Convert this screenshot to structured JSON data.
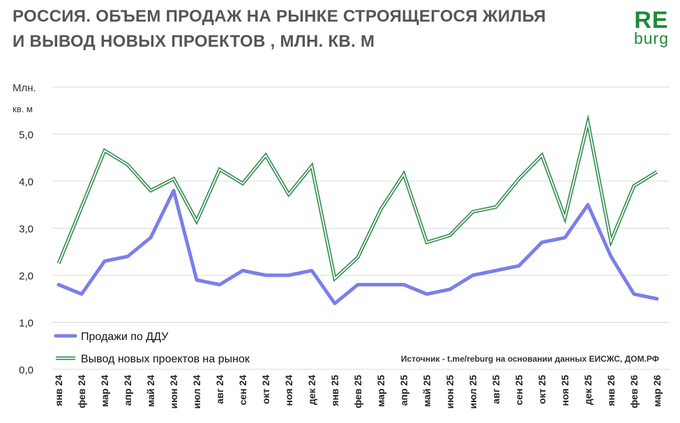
{
  "header": {
    "title_line1": "РОССИЯ. ОБЪЕМ ПРОДАЖ НА РЫНКЕ СТРОЯЩЕГОСЯ ЖИЛЬЯ",
    "title_line2": "И  ВЫВОД НОВЫХ ПРОЕКТОВ , МЛН. КВ. М"
  },
  "logo": {
    "top": "RE",
    "bottom": "burg"
  },
  "source": "Источник - t.me/reburg на основании данных ЕИСЖС, ДОМ.РФ",
  "colors": {
    "sales": "#7b7fe8",
    "new_projects": "#2e8b4a",
    "grid": "#d9d9d9",
    "title": "#555555"
  },
  "chart_data": {
    "type": "line",
    "title": "РОССИЯ. ОБЪЕМ ПРОДАЖ НА РЫНКЕ СТРОЯЩЕГОСЯ ЖИЛЬЯ И ВЫВОД НОВЫХ ПРОЕКТОВ , МЛН. КВ. М",
    "ylabel_line1": "Млн.",
    "ylabel_line2": "кв. м",
    "xlabel": "",
    "ylim": [
      0,
      6
    ],
    "yticks": [
      0,
      1,
      2,
      3,
      4,
      5
    ],
    "ytick_labels": [
      "0,0",
      "1,0",
      "2,0",
      "3,0",
      "4,0",
      "5,0"
    ],
    "grid": true,
    "legend_position": "bottom-left",
    "categories": [
      "янв 24",
      "фев 24",
      "мар 24",
      "апр 24",
      "май 24",
      "июн 24",
      "июл 24",
      "авг 24",
      "сен 24",
      "окт 24",
      "ноя 24",
      "дек 24",
      "янв 25",
      "фев 25",
      "мар 25",
      "апр 25",
      "май 25",
      "июн 25",
      "июл 25",
      "авг 25",
      "сен 25",
      "окт 25",
      "ноя 25",
      "дек 25",
      "янв 26",
      "фев 26",
      "мар 26"
    ],
    "series": [
      {
        "name": "Продажи по ДДУ",
        "style": "solid-thick",
        "values": [
          1.8,
          1.6,
          2.3,
          2.4,
          2.8,
          3.8,
          1.9,
          1.8,
          2.1,
          2.0,
          2.0,
          2.1,
          1.4,
          1.8,
          1.8,
          1.8,
          1.6,
          1.7,
          2.0,
          2.1,
          2.2,
          2.7,
          2.8,
          3.5,
          2.4,
          1.6,
          1.5
        ]
      },
      {
        "name": "Вывод новых проектов на рынок",
        "style": "double-line",
        "values": [
          2.25,
          3.45,
          4.65,
          4.35,
          3.8,
          4.05,
          3.15,
          4.25,
          3.95,
          4.55,
          3.72,
          4.32,
          1.93,
          2.38,
          3.4,
          4.15,
          2.7,
          2.85,
          3.35,
          3.45,
          4.05,
          4.55,
          3.22,
          5.25,
          2.72,
          3.9,
          4.2
        ]
      }
    ]
  }
}
